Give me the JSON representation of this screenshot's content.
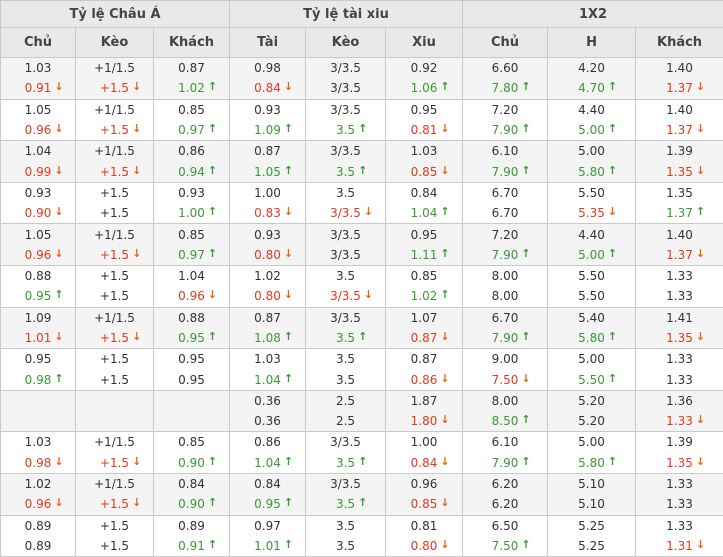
{
  "header": {
    "groups": [
      {
        "label": "Tỷ lệ Châu Á"
      },
      {
        "label": "Tỷ lệ tài xiu"
      },
      {
        "label": "1X2"
      }
    ],
    "columns": [
      "Chủ",
      "Kèo",
      "Khách",
      "Tài",
      "Kèo",
      "Xiu",
      "Chủ",
      "H",
      "Khách"
    ]
  },
  "icons": {
    "up_arrow_icon": "↑",
    "down_arrow_icon": "↓"
  },
  "colors": {
    "text_black": "#333333",
    "text_red": "#e23a1d",
    "text_green": "#3a9a33",
    "arrow_up": "#3a9a33",
    "arrow_down": "#e8650e",
    "header_bg": "#e9e9e9",
    "row_shade_bg": "#f4f4f4",
    "border": "#c9c9c9"
  },
  "rows": [
    {
      "lines": [
        [
          [
            "1.03",
            "k",
            ""
          ],
          [
            "+1/1.5",
            "k",
            ""
          ],
          [
            "0.87",
            "k",
            ""
          ],
          [
            "0.98",
            "k",
            ""
          ],
          [
            "3/3.5",
            "k",
            ""
          ],
          [
            "0.92",
            "k",
            ""
          ],
          [
            "6.60",
            "k",
            ""
          ],
          [
            "4.20",
            "k",
            ""
          ],
          [
            "1.40",
            "k",
            ""
          ]
        ],
        [
          [
            "0.91",
            "r",
            "d"
          ],
          [
            "+1.5",
            "r",
            "d"
          ],
          [
            "1.02",
            "g",
            "u"
          ],
          [
            "0.84",
            "r",
            "d"
          ],
          [
            "3/3.5",
            "k",
            ""
          ],
          [
            "1.06",
            "g",
            "u"
          ],
          [
            "7.80",
            "g",
            "u"
          ],
          [
            "4.70",
            "g",
            "u"
          ],
          [
            "1.37",
            "r",
            "d"
          ]
        ]
      ]
    },
    {
      "lines": [
        [
          [
            "1.05",
            "k",
            ""
          ],
          [
            "+1/1.5",
            "k",
            ""
          ],
          [
            "0.85",
            "k",
            ""
          ],
          [
            "0.93",
            "k",
            ""
          ],
          [
            "3/3.5",
            "k",
            ""
          ],
          [
            "0.95",
            "k",
            ""
          ],
          [
            "7.20",
            "k",
            ""
          ],
          [
            "4.40",
            "k",
            ""
          ],
          [
            "1.40",
            "k",
            ""
          ]
        ],
        [
          [
            "0.96",
            "r",
            "d"
          ],
          [
            "+1.5",
            "r",
            "d"
          ],
          [
            "0.97",
            "g",
            "u"
          ],
          [
            "1.09",
            "g",
            "u"
          ],
          [
            "3.5",
            "g",
            "u"
          ],
          [
            "0.81",
            "r",
            "d"
          ],
          [
            "7.90",
            "g",
            "u"
          ],
          [
            "5.00",
            "g",
            "u"
          ],
          [
            "1.37",
            "r",
            "d"
          ]
        ]
      ]
    },
    {
      "lines": [
        [
          [
            "1.04",
            "k",
            ""
          ],
          [
            "+1/1.5",
            "k",
            ""
          ],
          [
            "0.86",
            "k",
            ""
          ],
          [
            "0.87",
            "k",
            ""
          ],
          [
            "3/3.5",
            "k",
            ""
          ],
          [
            "1.03",
            "k",
            ""
          ],
          [
            "6.10",
            "k",
            ""
          ],
          [
            "5.00",
            "k",
            ""
          ],
          [
            "1.39",
            "k",
            ""
          ]
        ],
        [
          [
            "0.99",
            "r",
            "d"
          ],
          [
            "+1.5",
            "r",
            "d"
          ],
          [
            "0.94",
            "g",
            "u"
          ],
          [
            "1.05",
            "g",
            "u"
          ],
          [
            "3.5",
            "g",
            "u"
          ],
          [
            "0.85",
            "r",
            "d"
          ],
          [
            "7.90",
            "g",
            "u"
          ],
          [
            "5.80",
            "g",
            "u"
          ],
          [
            "1.35",
            "r",
            "d"
          ]
        ]
      ]
    },
    {
      "lines": [
        [
          [
            "0.93",
            "k",
            ""
          ],
          [
            "+1.5",
            "k",
            ""
          ],
          [
            "0.93",
            "k",
            ""
          ],
          [
            "1.00",
            "k",
            ""
          ],
          [
            "3.5",
            "k",
            ""
          ],
          [
            "0.84",
            "k",
            ""
          ],
          [
            "6.70",
            "k",
            ""
          ],
          [
            "5.50",
            "k",
            ""
          ],
          [
            "1.35",
            "k",
            ""
          ]
        ],
        [
          [
            "0.90",
            "r",
            "d"
          ],
          [
            "+1.5",
            "k",
            ""
          ],
          [
            "1.00",
            "g",
            "u"
          ],
          [
            "0.83",
            "r",
            "d"
          ],
          [
            "3/3.5",
            "r",
            "d"
          ],
          [
            "1.04",
            "g",
            "u"
          ],
          [
            "6.70",
            "k",
            ""
          ],
          [
            "5.35",
            "r",
            "d"
          ],
          [
            "1.37",
            "g",
            "u"
          ]
        ]
      ]
    },
    {
      "lines": [
        [
          [
            "1.05",
            "k",
            ""
          ],
          [
            "+1/1.5",
            "k",
            ""
          ],
          [
            "0.85",
            "k",
            ""
          ],
          [
            "0.93",
            "k",
            ""
          ],
          [
            "3/3.5",
            "k",
            ""
          ],
          [
            "0.95",
            "k",
            ""
          ],
          [
            "7.20",
            "k",
            ""
          ],
          [
            "4.40",
            "k",
            ""
          ],
          [
            "1.40",
            "k",
            ""
          ]
        ],
        [
          [
            "0.96",
            "r",
            "d"
          ],
          [
            "+1.5",
            "r",
            "d"
          ],
          [
            "0.97",
            "g",
            "u"
          ],
          [
            "0.80",
            "r",
            "d"
          ],
          [
            "3/3.5",
            "k",
            ""
          ],
          [
            "1.11",
            "g",
            "u"
          ],
          [
            "7.90",
            "g",
            "u"
          ],
          [
            "5.00",
            "g",
            "u"
          ],
          [
            "1.37",
            "r",
            "d"
          ]
        ]
      ]
    },
    {
      "lines": [
        [
          [
            "0.88",
            "k",
            ""
          ],
          [
            "+1.5",
            "k",
            ""
          ],
          [
            "1.04",
            "k",
            ""
          ],
          [
            "1.02",
            "k",
            ""
          ],
          [
            "3.5",
            "k",
            ""
          ],
          [
            "0.85",
            "k",
            ""
          ],
          [
            "8.00",
            "k",
            ""
          ],
          [
            "5.50",
            "k",
            ""
          ],
          [
            "1.33",
            "k",
            ""
          ]
        ],
        [
          [
            "0.95",
            "g",
            "u"
          ],
          [
            "+1.5",
            "k",
            ""
          ],
          [
            "0.96",
            "r",
            "d"
          ],
          [
            "0.80",
            "r",
            "d"
          ],
          [
            "3/3.5",
            "r",
            "d"
          ],
          [
            "1.02",
            "g",
            "u"
          ],
          [
            "8.00",
            "k",
            ""
          ],
          [
            "5.50",
            "k",
            ""
          ],
          [
            "1.33",
            "k",
            ""
          ]
        ]
      ]
    },
    {
      "lines": [
        [
          [
            "1.09",
            "k",
            ""
          ],
          [
            "+1/1.5",
            "k",
            ""
          ],
          [
            "0.88",
            "k",
            ""
          ],
          [
            "0.87",
            "k",
            ""
          ],
          [
            "3/3.5",
            "k",
            ""
          ],
          [
            "1.07",
            "k",
            ""
          ],
          [
            "6.70",
            "k",
            ""
          ],
          [
            "5.40",
            "k",
            ""
          ],
          [
            "1.41",
            "k",
            ""
          ]
        ],
        [
          [
            "1.01",
            "r",
            "d"
          ],
          [
            "+1.5",
            "r",
            "d"
          ],
          [
            "0.95",
            "g",
            "u"
          ],
          [
            "1.08",
            "g",
            "u"
          ],
          [
            "3.5",
            "g",
            "u"
          ],
          [
            "0.87",
            "r",
            "d"
          ],
          [
            "7.90",
            "g",
            "u"
          ],
          [
            "5.80",
            "g",
            "u"
          ],
          [
            "1.35",
            "r",
            "d"
          ]
        ]
      ]
    },
    {
      "lines": [
        [
          [
            "0.95",
            "k",
            ""
          ],
          [
            "+1.5",
            "k",
            ""
          ],
          [
            "0.95",
            "k",
            ""
          ],
          [
            "1.03",
            "k",
            ""
          ],
          [
            "3.5",
            "k",
            ""
          ],
          [
            "0.87",
            "k",
            ""
          ],
          [
            "9.00",
            "k",
            ""
          ],
          [
            "5.00",
            "k",
            ""
          ],
          [
            "1.33",
            "k",
            ""
          ]
        ],
        [
          [
            "0.98",
            "g",
            "u"
          ],
          [
            "+1.5",
            "k",
            ""
          ],
          [
            "0.95",
            "k",
            ""
          ],
          [
            "1.04",
            "g",
            "u"
          ],
          [
            "3.5",
            "k",
            ""
          ],
          [
            "0.86",
            "r",
            "d"
          ],
          [
            "7.50",
            "r",
            "d"
          ],
          [
            "5.50",
            "g",
            "u"
          ],
          [
            "1.33",
            "k",
            ""
          ]
        ]
      ]
    },
    {
      "lines": [
        [
          [
            "",
            "k",
            ""
          ],
          [
            "",
            "k",
            ""
          ],
          [
            "",
            "k",
            ""
          ],
          [
            "0.36",
            "k",
            ""
          ],
          [
            "2.5",
            "k",
            ""
          ],
          [
            "1.87",
            "k",
            ""
          ],
          [
            "8.00",
            "k",
            ""
          ],
          [
            "5.20",
            "k",
            ""
          ],
          [
            "1.36",
            "k",
            ""
          ]
        ],
        [
          [
            "",
            "k",
            ""
          ],
          [
            "",
            "k",
            ""
          ],
          [
            "",
            "k",
            ""
          ],
          [
            "0.36",
            "k",
            ""
          ],
          [
            "2.5",
            "k",
            ""
          ],
          [
            "1.80",
            "r",
            "d"
          ],
          [
            "8.50",
            "g",
            "u"
          ],
          [
            "5.20",
            "k",
            ""
          ],
          [
            "1.33",
            "r",
            "d"
          ]
        ]
      ]
    },
    {
      "lines": [
        [
          [
            "1.03",
            "k",
            ""
          ],
          [
            "+1/1.5",
            "k",
            ""
          ],
          [
            "0.85",
            "k",
            ""
          ],
          [
            "0.86",
            "k",
            ""
          ],
          [
            "3/3.5",
            "k",
            ""
          ],
          [
            "1.00",
            "k",
            ""
          ],
          [
            "6.10",
            "k",
            ""
          ],
          [
            "5.00",
            "k",
            ""
          ],
          [
            "1.39",
            "k",
            ""
          ]
        ],
        [
          [
            "0.98",
            "r",
            "d"
          ],
          [
            "+1.5",
            "r",
            "d"
          ],
          [
            "0.90",
            "g",
            "u"
          ],
          [
            "1.04",
            "g",
            "u"
          ],
          [
            "3.5",
            "g",
            "u"
          ],
          [
            "0.84",
            "r",
            "d"
          ],
          [
            "7.90",
            "g",
            "u"
          ],
          [
            "5.80",
            "g",
            "u"
          ],
          [
            "1.35",
            "r",
            "d"
          ]
        ]
      ]
    },
    {
      "lines": [
        [
          [
            "1.02",
            "k",
            ""
          ],
          [
            "+1/1.5",
            "k",
            ""
          ],
          [
            "0.84",
            "k",
            ""
          ],
          [
            "0.84",
            "k",
            ""
          ],
          [
            "3/3.5",
            "k",
            ""
          ],
          [
            "0.96",
            "k",
            ""
          ],
          [
            "6.20",
            "k",
            ""
          ],
          [
            "5.10",
            "k",
            ""
          ],
          [
            "1.33",
            "k",
            ""
          ]
        ],
        [
          [
            "0.96",
            "r",
            "d"
          ],
          [
            "+1.5",
            "r",
            "d"
          ],
          [
            "0.90",
            "g",
            "u"
          ],
          [
            "0.95",
            "g",
            "u"
          ],
          [
            "3.5",
            "g",
            "u"
          ],
          [
            "0.85",
            "r",
            "d"
          ],
          [
            "6.20",
            "k",
            ""
          ],
          [
            "5.10",
            "k",
            ""
          ],
          [
            "1.33",
            "k",
            ""
          ]
        ]
      ]
    },
    {
      "lines": [
        [
          [
            "0.89",
            "k",
            ""
          ],
          [
            "+1.5",
            "k",
            ""
          ],
          [
            "0.89",
            "k",
            ""
          ],
          [
            "0.97",
            "k",
            ""
          ],
          [
            "3.5",
            "k",
            ""
          ],
          [
            "0.81",
            "k",
            ""
          ],
          [
            "6.50",
            "k",
            ""
          ],
          [
            "5.25",
            "k",
            ""
          ],
          [
            "1.33",
            "k",
            ""
          ]
        ],
        [
          [
            "0.89",
            "k",
            ""
          ],
          [
            "+1.5",
            "k",
            ""
          ],
          [
            "0.91",
            "g",
            "u"
          ],
          [
            "1.01",
            "g",
            "u"
          ],
          [
            "3.5",
            "k",
            ""
          ],
          [
            "0.80",
            "r",
            "d"
          ],
          [
            "7.50",
            "g",
            "u"
          ],
          [
            "5.25",
            "k",
            ""
          ],
          [
            "1.31",
            "r",
            "d"
          ]
        ]
      ]
    }
  ]
}
